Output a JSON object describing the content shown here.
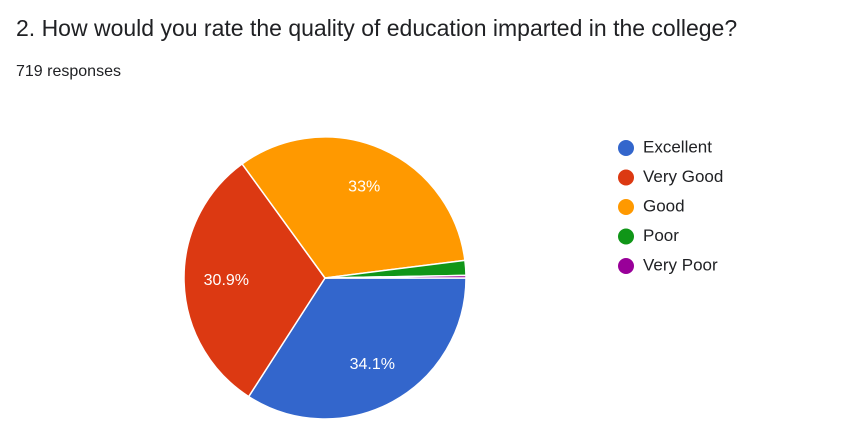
{
  "chart_data": {
    "type": "pie",
    "title": "2. How would you rate the quality of education imparted in the college?",
    "subtitle": "719 responses",
    "categories": [
      "Excellent",
      "Very Good",
      "Good",
      "Poor",
      "Very Poor"
    ],
    "values": [
      34.1,
      30.9,
      33,
      1.7,
      0.3
    ],
    "value_labels": [
      "34.1%",
      "30.9%",
      "33%",
      null,
      null
    ],
    "colors": [
      "#3366cc",
      "#dc3912",
      "#ff9900",
      "#109618",
      "#990099"
    ],
    "legend": "right"
  }
}
